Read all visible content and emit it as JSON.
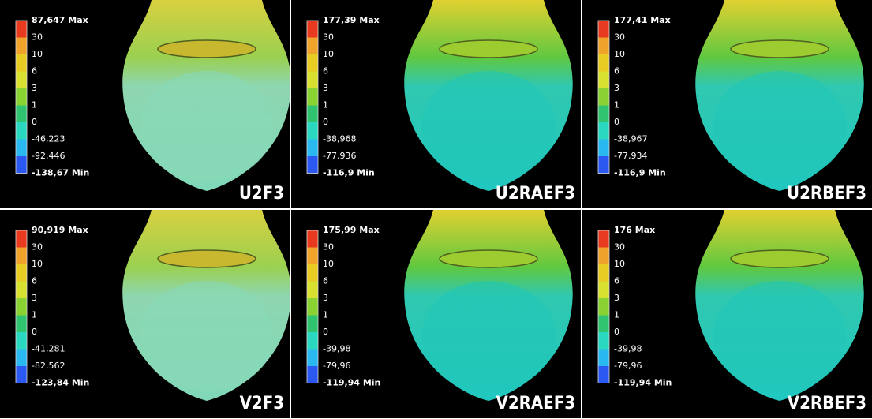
{
  "panels": [
    {
      "label": "U2F3",
      "legend": [
        "87,647 Max",
        "30",
        "10",
        "6",
        "3",
        "1",
        "0",
        "-46,223",
        "-92,446",
        "-138,67 Min"
      ]
    },
    {
      "label": "U2RAEF3",
      "legend": [
        "177,39 Max",
        "30",
        "10",
        "6",
        "3",
        "1",
        "0",
        "-38,968",
        "-77,936",
        "-116,9 Min"
      ]
    },
    {
      "label": "U2RBEF3",
      "legend": [
        "177,41 Max",
        "30",
        "10",
        "6",
        "3",
        "1",
        "0",
        "-38,967",
        "-77,934",
        "-116,9 Min"
      ]
    },
    {
      "label": "V2F3",
      "legend": [
        "90,919 Max",
        "30",
        "10",
        "6",
        "3",
        "1",
        "0",
        "-41,281",
        "-82,562",
        "-123,84 Min"
      ]
    },
    {
      "label": "V2RAEF3",
      "legend": [
        "175,99 Max",
        "30",
        "10",
        "6",
        "3",
        "1",
        "0",
        "-39,98",
        "-79,96",
        "-119,94 Min"
      ]
    },
    {
      "label": "V2RBEF3",
      "legend": [
        "176 Max",
        "30",
        "10",
        "6",
        "3",
        "1",
        "0",
        "-39,98",
        "-79,96",
        "-119,94 Min"
      ]
    }
  ]
}
